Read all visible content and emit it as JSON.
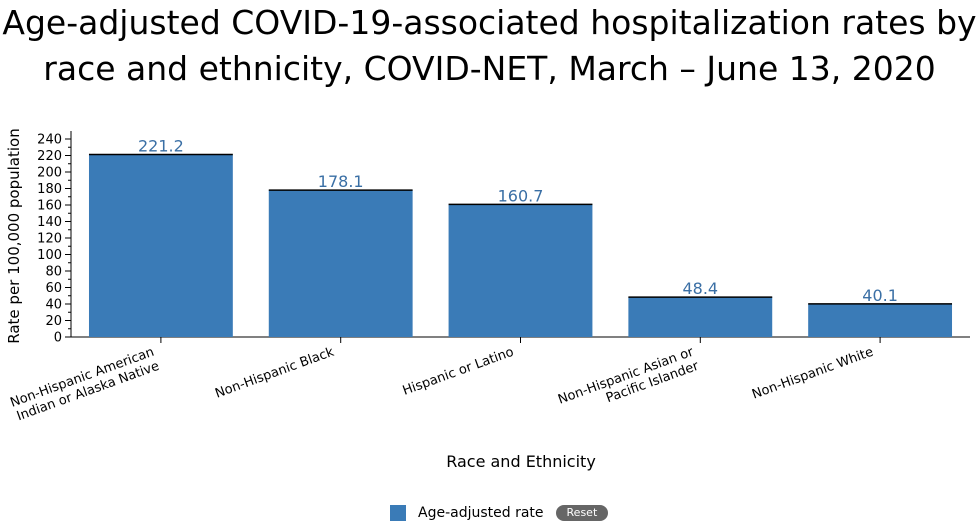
{
  "chart_data": {
    "type": "bar",
    "title": "Age-adjusted COVID-19-associated hospitalization rates by race and ethnicity, COVID-NET, March – June 13, 2020",
    "categories": [
      "Non-Hispanic American Indian or Alaska Native",
      "Non-Hispanic Black",
      "Hispanic or Latino",
      "Non-Hispanic Asian or Pacific Islander",
      "Non-Hispanic White"
    ],
    "category_lines": [
      [
        "Non-Hispanic American",
        "Indian or Alaska Native"
      ],
      [
        "Non-Hispanic Black"
      ],
      [
        "Hispanic or Latino"
      ],
      [
        "Non-Hispanic Asian or",
        "Pacific Islander"
      ],
      [
        "Non-Hispanic White"
      ]
    ],
    "series": [
      {
        "name": "Age-adjusted rate",
        "values": [
          221.2,
          178.1,
          160.7,
          48.4,
          40.1
        ]
      }
    ],
    "data_labels": [
      "221.2",
      "178.1",
      "160.7",
      "48.4",
      "40.1"
    ],
    "xlabel": "Race and Ethnicity",
    "ylabel": "Rate per 100,000 population",
    "ylim": [
      0,
      240
    ],
    "yticks": [
      0,
      20,
      40,
      60,
      80,
      100,
      120,
      140,
      160,
      180,
      200,
      220,
      240
    ],
    "grid": false,
    "legend_position": "bottom-center"
  },
  "legend": {
    "label": "Age-adjusted rate",
    "reset_label": "Reset"
  },
  "colors": {
    "bar": "#3a7bb7",
    "data_label": "#3a6fa5",
    "axis": "#000000"
  }
}
